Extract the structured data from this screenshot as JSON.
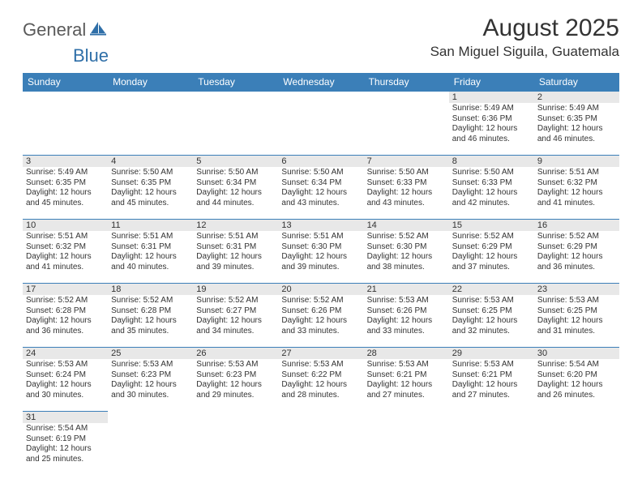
{
  "logo": {
    "part1": "General",
    "part2": "Blue"
  },
  "title": "August 2025",
  "location": "San Miguel Siguila, Guatemala",
  "colors": {
    "header_bg": "#3b7fb8",
    "header_text": "#ffffff",
    "daynum_bg": "#e8e8e8",
    "border": "#3b7fb8",
    "logo_gray": "#5a5a5a",
    "logo_blue": "#2f6fa8"
  },
  "dow": [
    "Sunday",
    "Monday",
    "Tuesday",
    "Wednesday",
    "Thursday",
    "Friday",
    "Saturday"
  ],
  "weeks": [
    [
      null,
      null,
      null,
      null,
      null,
      {
        "n": "1",
        "sr": "Sunrise: 5:49 AM",
        "ss": "Sunset: 6:36 PM",
        "d1": "Daylight: 12 hours",
        "d2": "and 46 minutes."
      },
      {
        "n": "2",
        "sr": "Sunrise: 5:49 AM",
        "ss": "Sunset: 6:35 PM",
        "d1": "Daylight: 12 hours",
        "d2": "and 46 minutes."
      }
    ],
    [
      {
        "n": "3",
        "sr": "Sunrise: 5:49 AM",
        "ss": "Sunset: 6:35 PM",
        "d1": "Daylight: 12 hours",
        "d2": "and 45 minutes."
      },
      {
        "n": "4",
        "sr": "Sunrise: 5:50 AM",
        "ss": "Sunset: 6:35 PM",
        "d1": "Daylight: 12 hours",
        "d2": "and 45 minutes."
      },
      {
        "n": "5",
        "sr": "Sunrise: 5:50 AM",
        "ss": "Sunset: 6:34 PM",
        "d1": "Daylight: 12 hours",
        "d2": "and 44 minutes."
      },
      {
        "n": "6",
        "sr": "Sunrise: 5:50 AM",
        "ss": "Sunset: 6:34 PM",
        "d1": "Daylight: 12 hours",
        "d2": "and 43 minutes."
      },
      {
        "n": "7",
        "sr": "Sunrise: 5:50 AM",
        "ss": "Sunset: 6:33 PM",
        "d1": "Daylight: 12 hours",
        "d2": "and 43 minutes."
      },
      {
        "n": "8",
        "sr": "Sunrise: 5:50 AM",
        "ss": "Sunset: 6:33 PM",
        "d1": "Daylight: 12 hours",
        "d2": "and 42 minutes."
      },
      {
        "n": "9",
        "sr": "Sunrise: 5:51 AM",
        "ss": "Sunset: 6:32 PM",
        "d1": "Daylight: 12 hours",
        "d2": "and 41 minutes."
      }
    ],
    [
      {
        "n": "10",
        "sr": "Sunrise: 5:51 AM",
        "ss": "Sunset: 6:32 PM",
        "d1": "Daylight: 12 hours",
        "d2": "and 41 minutes."
      },
      {
        "n": "11",
        "sr": "Sunrise: 5:51 AM",
        "ss": "Sunset: 6:31 PM",
        "d1": "Daylight: 12 hours",
        "d2": "and 40 minutes."
      },
      {
        "n": "12",
        "sr": "Sunrise: 5:51 AM",
        "ss": "Sunset: 6:31 PM",
        "d1": "Daylight: 12 hours",
        "d2": "and 39 minutes."
      },
      {
        "n": "13",
        "sr": "Sunrise: 5:51 AM",
        "ss": "Sunset: 6:30 PM",
        "d1": "Daylight: 12 hours",
        "d2": "and 39 minutes."
      },
      {
        "n": "14",
        "sr": "Sunrise: 5:52 AM",
        "ss": "Sunset: 6:30 PM",
        "d1": "Daylight: 12 hours",
        "d2": "and 38 minutes."
      },
      {
        "n": "15",
        "sr": "Sunrise: 5:52 AM",
        "ss": "Sunset: 6:29 PM",
        "d1": "Daylight: 12 hours",
        "d2": "and 37 minutes."
      },
      {
        "n": "16",
        "sr": "Sunrise: 5:52 AM",
        "ss": "Sunset: 6:29 PM",
        "d1": "Daylight: 12 hours",
        "d2": "and 36 minutes."
      }
    ],
    [
      {
        "n": "17",
        "sr": "Sunrise: 5:52 AM",
        "ss": "Sunset: 6:28 PM",
        "d1": "Daylight: 12 hours",
        "d2": "and 36 minutes."
      },
      {
        "n": "18",
        "sr": "Sunrise: 5:52 AM",
        "ss": "Sunset: 6:28 PM",
        "d1": "Daylight: 12 hours",
        "d2": "and 35 minutes."
      },
      {
        "n": "19",
        "sr": "Sunrise: 5:52 AM",
        "ss": "Sunset: 6:27 PM",
        "d1": "Daylight: 12 hours",
        "d2": "and 34 minutes."
      },
      {
        "n": "20",
        "sr": "Sunrise: 5:52 AM",
        "ss": "Sunset: 6:26 PM",
        "d1": "Daylight: 12 hours",
        "d2": "and 33 minutes."
      },
      {
        "n": "21",
        "sr": "Sunrise: 5:53 AM",
        "ss": "Sunset: 6:26 PM",
        "d1": "Daylight: 12 hours",
        "d2": "and 33 minutes."
      },
      {
        "n": "22",
        "sr": "Sunrise: 5:53 AM",
        "ss": "Sunset: 6:25 PM",
        "d1": "Daylight: 12 hours",
        "d2": "and 32 minutes."
      },
      {
        "n": "23",
        "sr": "Sunrise: 5:53 AM",
        "ss": "Sunset: 6:25 PM",
        "d1": "Daylight: 12 hours",
        "d2": "and 31 minutes."
      }
    ],
    [
      {
        "n": "24",
        "sr": "Sunrise: 5:53 AM",
        "ss": "Sunset: 6:24 PM",
        "d1": "Daylight: 12 hours",
        "d2": "and 30 minutes."
      },
      {
        "n": "25",
        "sr": "Sunrise: 5:53 AM",
        "ss": "Sunset: 6:23 PM",
        "d1": "Daylight: 12 hours",
        "d2": "and 30 minutes."
      },
      {
        "n": "26",
        "sr": "Sunrise: 5:53 AM",
        "ss": "Sunset: 6:23 PM",
        "d1": "Daylight: 12 hours",
        "d2": "and 29 minutes."
      },
      {
        "n": "27",
        "sr": "Sunrise: 5:53 AM",
        "ss": "Sunset: 6:22 PM",
        "d1": "Daylight: 12 hours",
        "d2": "and 28 minutes."
      },
      {
        "n": "28",
        "sr": "Sunrise: 5:53 AM",
        "ss": "Sunset: 6:21 PM",
        "d1": "Daylight: 12 hours",
        "d2": "and 27 minutes."
      },
      {
        "n": "29",
        "sr": "Sunrise: 5:53 AM",
        "ss": "Sunset: 6:21 PM",
        "d1": "Daylight: 12 hours",
        "d2": "and 27 minutes."
      },
      {
        "n": "30",
        "sr": "Sunrise: 5:54 AM",
        "ss": "Sunset: 6:20 PM",
        "d1": "Daylight: 12 hours",
        "d2": "and 26 minutes."
      }
    ],
    [
      {
        "n": "31",
        "sr": "Sunrise: 5:54 AM",
        "ss": "Sunset: 6:19 PM",
        "d1": "Daylight: 12 hours",
        "d2": "and 25 minutes."
      },
      null,
      null,
      null,
      null,
      null,
      null
    ]
  ]
}
